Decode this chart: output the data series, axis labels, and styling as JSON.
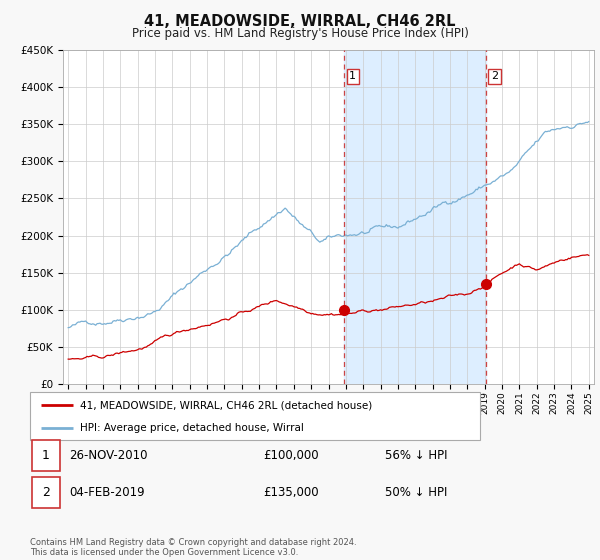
{
  "title": "41, MEADOWSIDE, WIRRAL, CH46 2RL",
  "subtitle": "Price paid vs. HM Land Registry's House Price Index (HPI)",
  "footer": "Contains HM Land Registry data © Crown copyright and database right 2024.\nThis data is licensed under the Open Government Licence v3.0.",
  "ylim": [
    0,
    450000
  ],
  "xlim_start": 1994.7,
  "xlim_end": 2025.3,
  "sale1_x": 2010.9,
  "sale1_y": 100000,
  "sale2_x": 2019.08,
  "sale2_y": 135000,
  "shade_color": "#ddeeff",
  "hpi_color": "#7ab0d4",
  "price_color": "#cc0000",
  "dashed_line_color": "#cc4444",
  "grid_color": "#cccccc",
  "legend_entries": [
    "41, MEADOWSIDE, WIRRAL, CH46 2RL (detached house)",
    "HPI: Average price, detached house, Wirral"
  ],
  "table_rows": [
    {
      "num": "1",
      "date": "26-NOV-2010",
      "price": "£100,000",
      "pct": "56% ↓ HPI"
    },
    {
      "num": "2",
      "date": "04-FEB-2019",
      "price": "£135,000",
      "pct": "50% ↓ HPI"
    }
  ]
}
